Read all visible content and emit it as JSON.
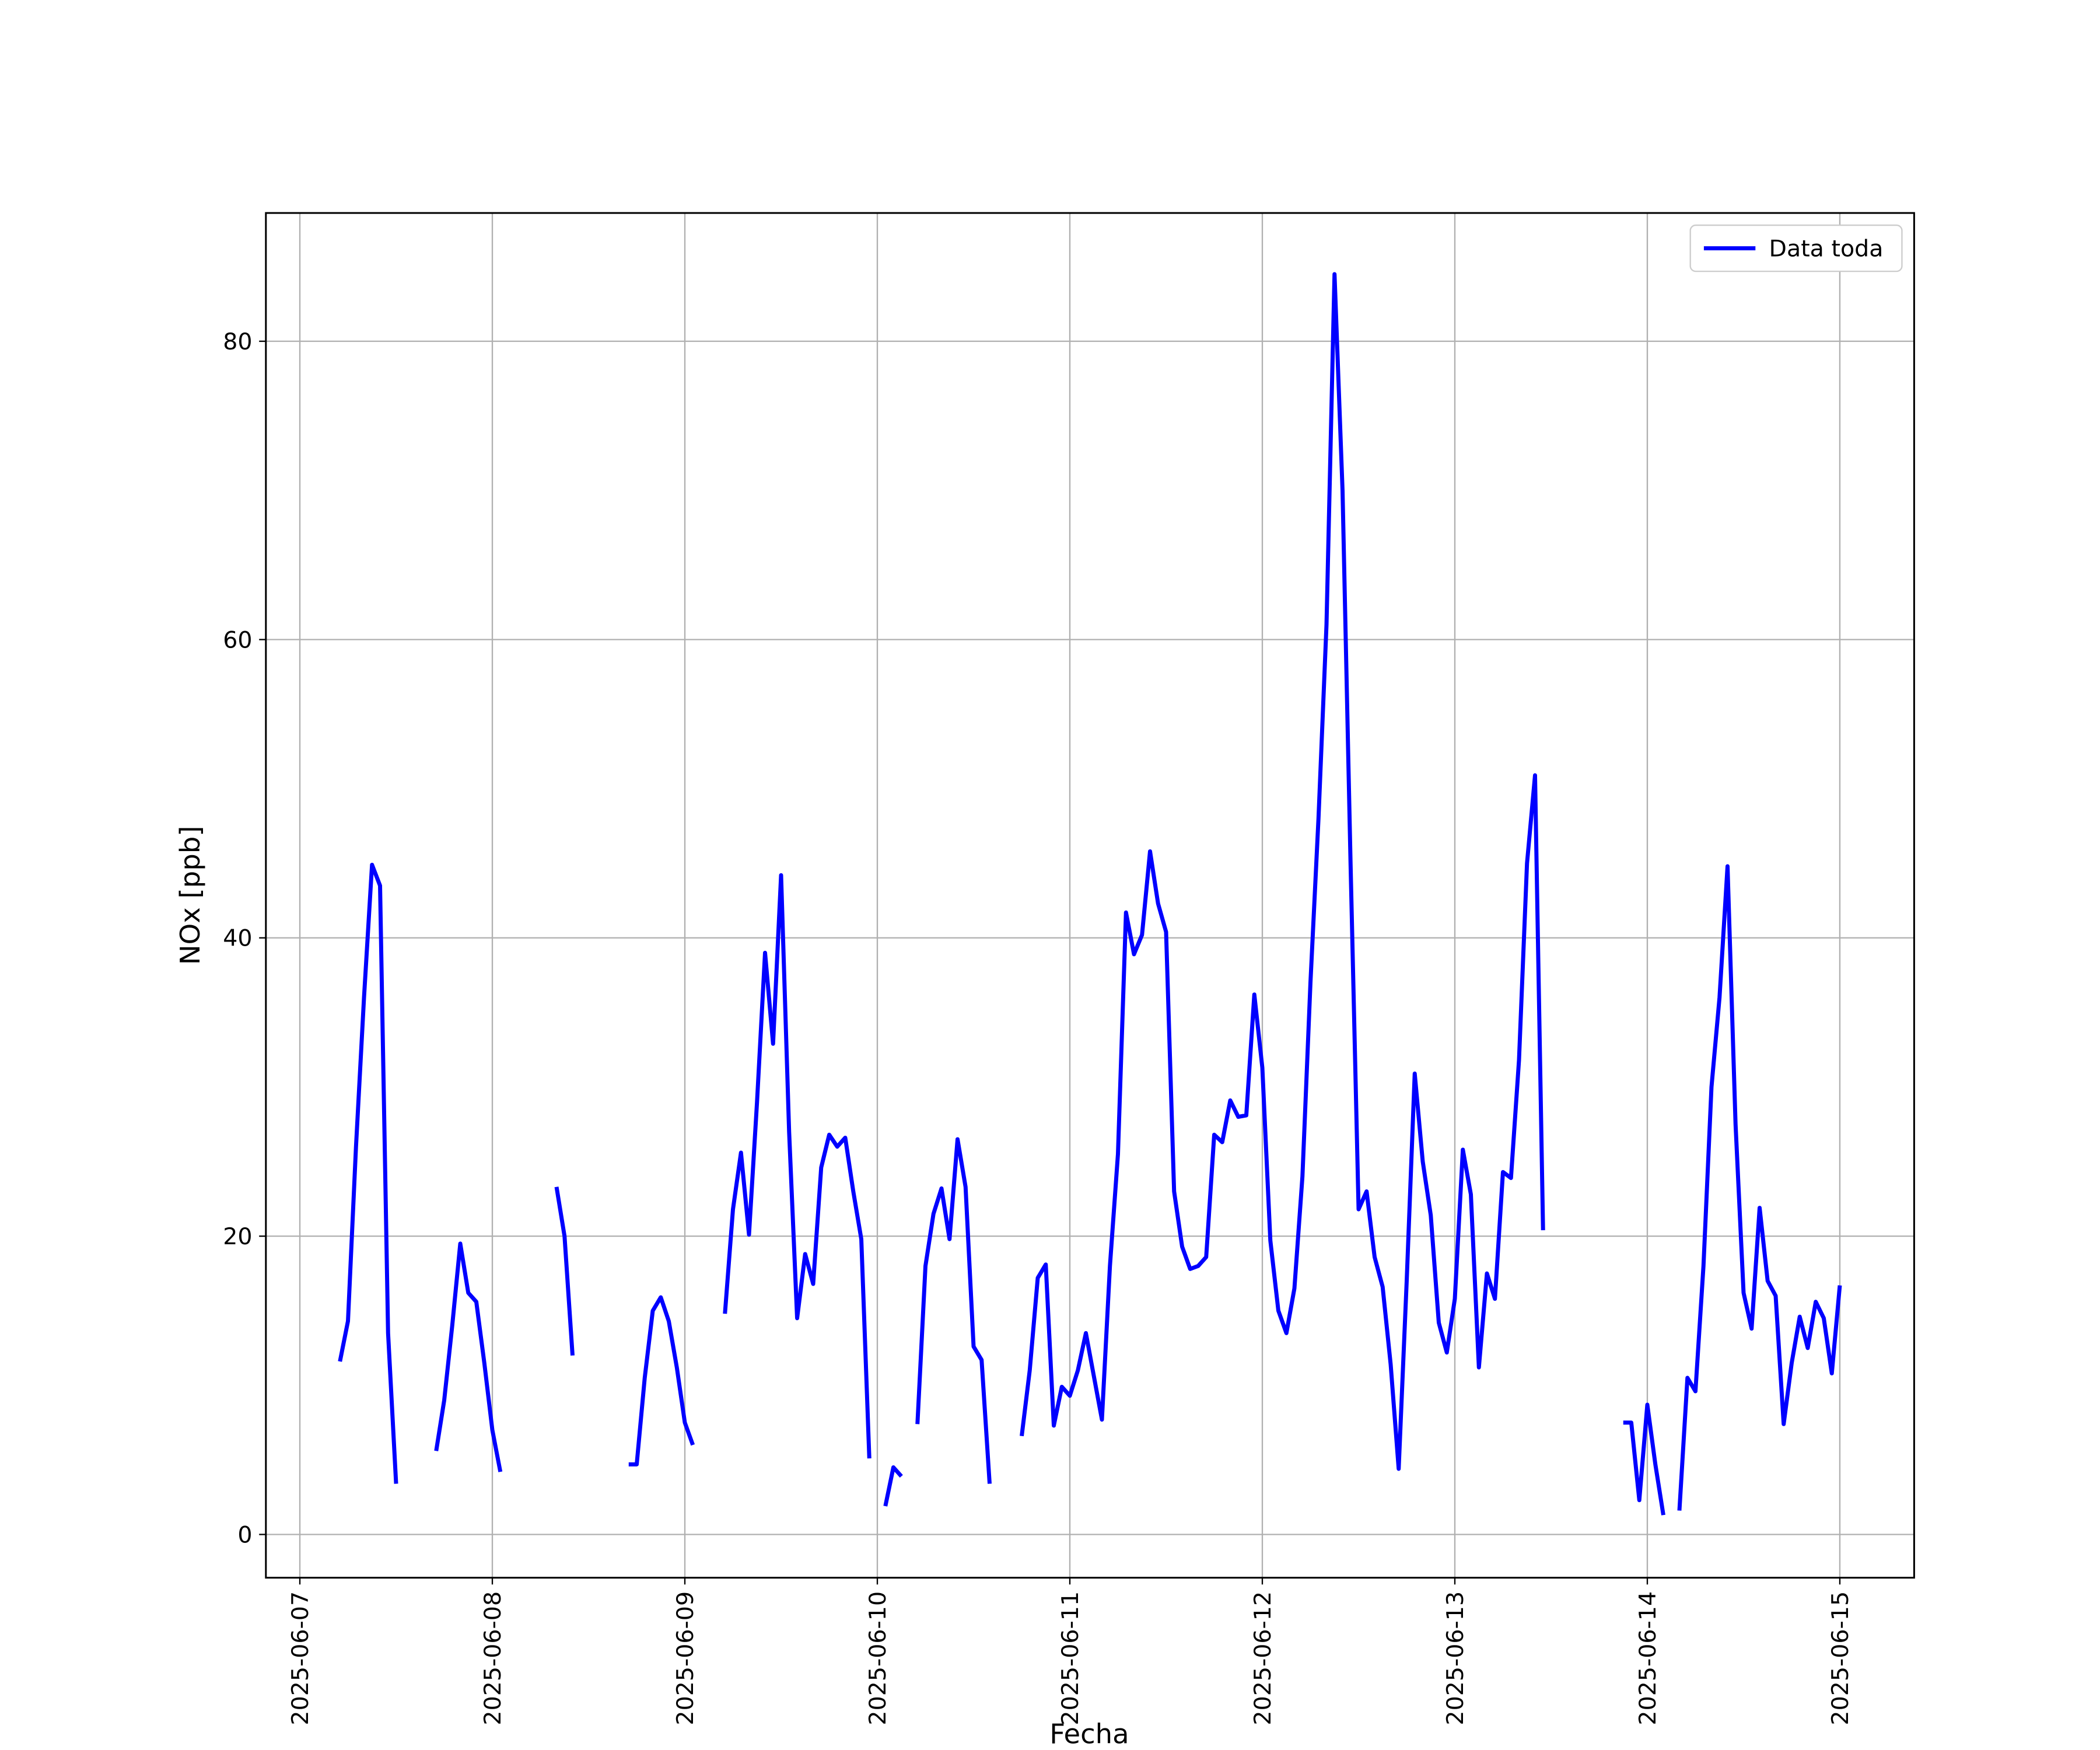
{
  "chart_data": {
    "type": "line",
    "xlabel": "Fecha",
    "ylabel": "NOx [ppb]",
    "xlim": [
      "2025-06-06T19:46",
      "2025-06-15T09:16"
    ],
    "xticks": [
      "2025-06-07",
      "2025-06-08",
      "2025-06-09",
      "2025-06-10",
      "2025-06-11",
      "2025-06-12",
      "2025-06-13",
      "2025-06-14",
      "2025-06-15"
    ],
    "ylim": [
      -2.9,
      88.6
    ],
    "yticks": [
      0,
      20,
      40,
      60,
      80
    ],
    "grid": true,
    "legend": "upper right",
    "x": [
      "2025-06-07T05:00",
      "2025-06-07T06:00",
      "2025-06-07T07:00",
      "2025-06-07T08:00",
      "2025-06-07T09:00",
      "2025-06-07T10:00",
      "2025-06-07T11:00",
      "2025-06-07T12:00",
      "2025-06-07T13:00",
      "2025-06-07T17:00",
      "2025-06-07T18:00",
      "2025-06-07T19:00",
      "2025-06-07T20:00",
      "2025-06-07T21:00",
      "2025-06-07T22:00",
      "2025-06-07T23:00",
      "2025-06-08T00:00",
      "2025-06-08T01:00",
      "2025-06-08T02:00",
      "2025-06-08T08:00",
      "2025-06-08T09:00",
      "2025-06-08T10:00",
      "2025-06-08T11:00",
      "2025-06-08T17:00",
      "2025-06-08T18:00",
      "2025-06-08T19:00",
      "2025-06-08T20:00",
      "2025-06-08T21:00",
      "2025-06-08T22:00",
      "2025-06-08T23:00",
      "2025-06-09T00:00",
      "2025-06-09T01:00",
      "2025-06-09T02:00",
      "2025-06-09T05:00",
      "2025-06-09T06:00",
      "2025-06-09T07:00",
      "2025-06-09T08:00",
      "2025-06-09T09:00",
      "2025-06-09T10:00",
      "2025-06-09T11:00",
      "2025-06-09T12:00",
      "2025-06-09T13:00",
      "2025-06-09T14:00",
      "2025-06-09T15:00",
      "2025-06-09T16:00",
      "2025-06-09T17:00",
      "2025-06-09T18:00",
      "2025-06-09T19:00",
      "2025-06-09T20:00",
      "2025-06-09T21:00",
      "2025-06-09T22:00",
      "2025-06-09T23:00",
      "2025-06-10T00:00",
      "2025-06-10T01:00",
      "2025-06-10T02:00",
      "2025-06-10T03:00",
      "2025-06-10T04:00",
      "2025-06-10T05:00",
      "2025-06-10T06:00",
      "2025-06-10T07:00",
      "2025-06-10T08:00",
      "2025-06-10T09:00",
      "2025-06-10T10:00",
      "2025-06-10T11:00",
      "2025-06-10T12:00",
      "2025-06-10T13:00",
      "2025-06-10T14:00",
      "2025-06-10T15:00",
      "2025-06-10T18:00",
      "2025-06-10T19:00",
      "2025-06-10T20:00",
      "2025-06-10T21:00",
      "2025-06-10T22:00",
      "2025-06-10T23:00",
      "2025-06-11T00:00",
      "2025-06-11T01:00",
      "2025-06-11T02:00",
      "2025-06-11T03:00",
      "2025-06-11T04:00",
      "2025-06-11T05:00",
      "2025-06-11T06:00",
      "2025-06-11T07:00",
      "2025-06-11T08:00",
      "2025-06-11T09:00",
      "2025-06-11T10:00",
      "2025-06-11T11:00",
      "2025-06-11T12:00",
      "2025-06-11T13:00",
      "2025-06-11T14:00",
      "2025-06-11T15:00",
      "2025-06-11T16:00",
      "2025-06-11T17:00",
      "2025-06-11T18:00",
      "2025-06-11T19:00",
      "2025-06-11T20:00",
      "2025-06-11T21:00",
      "2025-06-11T22:00",
      "2025-06-11T23:00",
      "2025-06-12T00:00",
      "2025-06-12T01:00",
      "2025-06-12T02:00",
      "2025-06-12T03:00",
      "2025-06-12T04:00",
      "2025-06-12T05:00",
      "2025-06-12T06:00",
      "2025-06-12T07:00",
      "2025-06-12T08:00",
      "2025-06-12T09:00",
      "2025-06-12T10:00",
      "2025-06-12T11:00",
      "2025-06-12T12:00",
      "2025-06-12T13:00",
      "2025-06-12T14:00",
      "2025-06-12T15:00",
      "2025-06-12T16:00",
      "2025-06-12T17:00",
      "2025-06-12T18:00",
      "2025-06-12T19:00",
      "2025-06-12T20:00",
      "2025-06-12T21:00",
      "2025-06-12T22:00",
      "2025-06-12T23:00",
      "2025-06-13T00:00",
      "2025-06-13T01:00",
      "2025-06-13T02:00",
      "2025-06-13T03:00",
      "2025-06-13T04:00",
      "2025-06-13T05:00",
      "2025-06-13T06:00",
      "2025-06-13T07:00",
      "2025-06-13T08:00",
      "2025-06-13T09:00",
      "2025-06-13T10:00",
      "2025-06-13T11:00",
      "2025-06-13T12:00",
      "2025-06-13T21:00",
      "2025-06-13T22:00",
      "2025-06-13T23:00",
      "2025-06-14T00:00",
      "2025-06-14T01:00",
      "2025-06-14T02:00",
      "2025-06-14T03:00",
      "2025-06-14T04:00",
      "2025-06-14T05:00",
      "2025-06-14T06:00",
      "2025-06-14T07:00",
      "2025-06-14T08:00",
      "2025-06-14T09:00",
      "2025-06-14T10:00",
      "2025-06-14T11:00",
      "2025-06-14T12:00",
      "2025-06-14T13:00",
      "2025-06-14T14:00",
      "2025-06-14T15:00",
      "2025-06-14T16:00",
      "2025-06-14T17:00",
      "2025-06-14T18:00",
      "2025-06-14T19:00",
      "2025-06-14T20:00",
      "2025-06-14T21:00",
      "2025-06-14T22:00",
      "2025-06-14T23:00",
      "2025-06-15T00:00"
    ],
    "series": [
      {
        "name": "Data toda",
        "color": "#0000ff",
        "values": [
          11.6,
          14.3,
          26,
          36,
          44.9,
          43.5,
          13.5,
          3.4,
          null,
          5.6,
          9,
          14,
          19.5,
          16.2,
          15.6,
          11.5,
          7,
          4.2,
          null,
          23.3,
          20,
          12,
          null,
          4.7,
          4.7,
          10.5,
          15,
          15.9,
          14.3,
          11.2,
          7.5,
          6,
          null,
          14.8,
          21.8,
          25.6,
          20.1,
          29,
          39,
          32.9,
          44.2,
          27,
          14.5,
          18.8,
          16.8,
          24.6,
          26.8,
          26,
          26.6,
          23,
          19.8,
          5.1,
          null,
          1.9,
          4.5,
          3.9,
          null,
          7.4,
          18,
          21.5,
          23.2,
          19.8,
          26.5,
          23.3,
          12.6,
          11.7,
          3.4,
          null,
          6.6,
          11,
          17.2,
          18.1,
          7.3,
          9.9,
          9.3,
          11,
          13.5,
          10.6,
          7.7,
          18,
          25.5,
          41.7,
          38.9,
          40.2,
          45.8,
          42.3,
          40.4,
          23,
          19.3,
          17.8,
          18,
          18.6,
          26.8,
          26.3,
          29.1,
          28,
          28.1,
          36.2,
          31.3,
          19.7,
          15,
          13.5,
          16.5,
          24,
          37,
          48,
          61,
          84.5,
          70,
          45,
          21.8,
          23,
          18.6,
          16.6,
          11.4,
          4.4,
          17,
          30.9,
          25,
          21.4,
          14.2,
          12.2,
          15.8,
          25.8,
          22.8,
          11.2,
          17.5,
          15.8,
          24.3,
          23.9,
          31.8,
          45,
          50.9,
          20.4,
          null,
          7.5,
          7.5,
          2.3,
          8.7,
          4.7,
          1.3,
          null,
          1.6,
          10.5,
          9.6,
          18,
          30,
          36,
          44.8,
          27.5,
          16.2,
          13.8,
          21.9,
          17,
          16,
          7.4,
          11.5,
          14.6,
          12.5,
          15.6,
          14.5,
          10.8,
          16.7
        ]
      }
    ]
  }
}
